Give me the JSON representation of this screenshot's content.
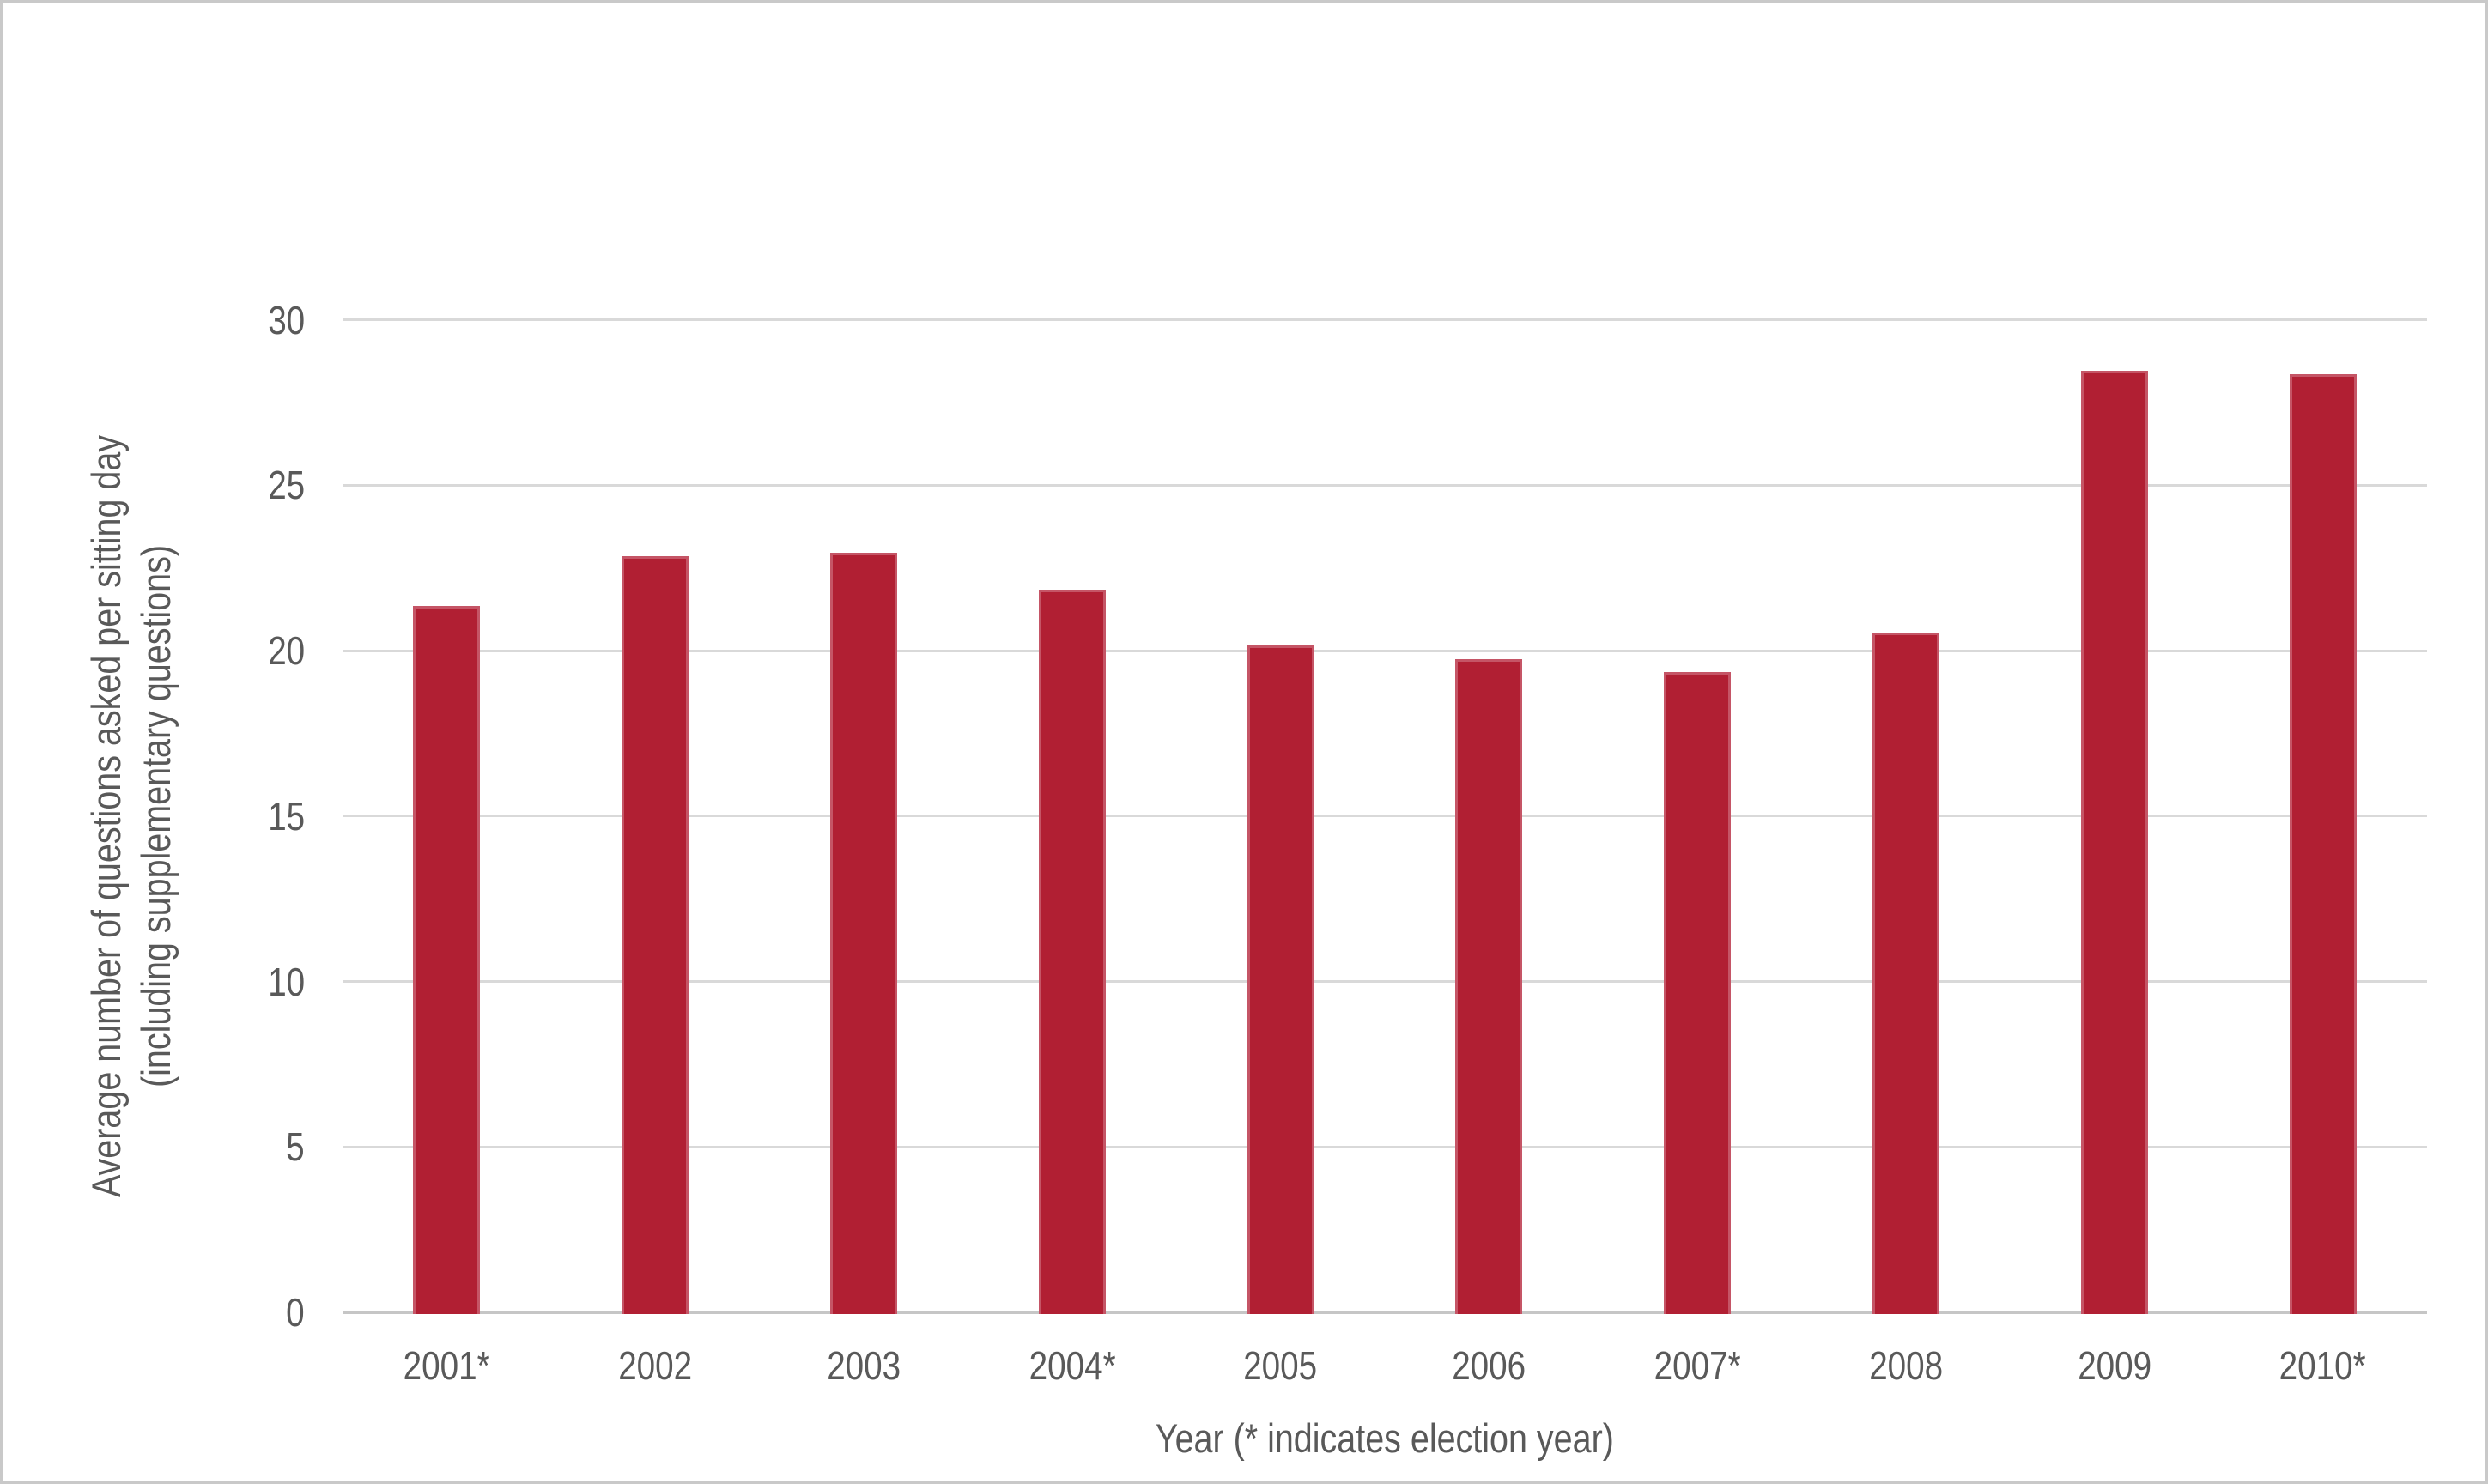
{
  "page": {
    "background": "#ffffff",
    "border_color": "#c9c9c9"
  },
  "chart_data": {
    "type": "bar",
    "title": "",
    "categories": [
      "2001*",
      "2002",
      "2003",
      "2004*",
      "2005",
      "2006",
      "2007*",
      "2008",
      "2009",
      "2010*"
    ],
    "values": [
      21.4,
      22.9,
      23.0,
      21.9,
      20.2,
      19.8,
      19.4,
      20.6,
      28.5,
      28.4
    ],
    "xlabel": "Year (* indicates election year)",
    "ylabel": "Average number of questions asked per sitting day (including supplementary questions)",
    "ylabel_lines": [
      "Average number of questions asked per sitting day",
      "(including supplementary questions)"
    ],
    "ylim": [
      0,
      30
    ],
    "yticks": [
      0,
      5,
      10,
      15,
      20,
      25,
      30
    ],
    "grid": true,
    "legend_position": "none",
    "colors": {
      "bar_fill": "#b11f33",
      "bar_edge": "#c55566",
      "gridline": "#d9d9d9",
      "axis_line": "#c6c6c6",
      "text": "#595959"
    }
  }
}
